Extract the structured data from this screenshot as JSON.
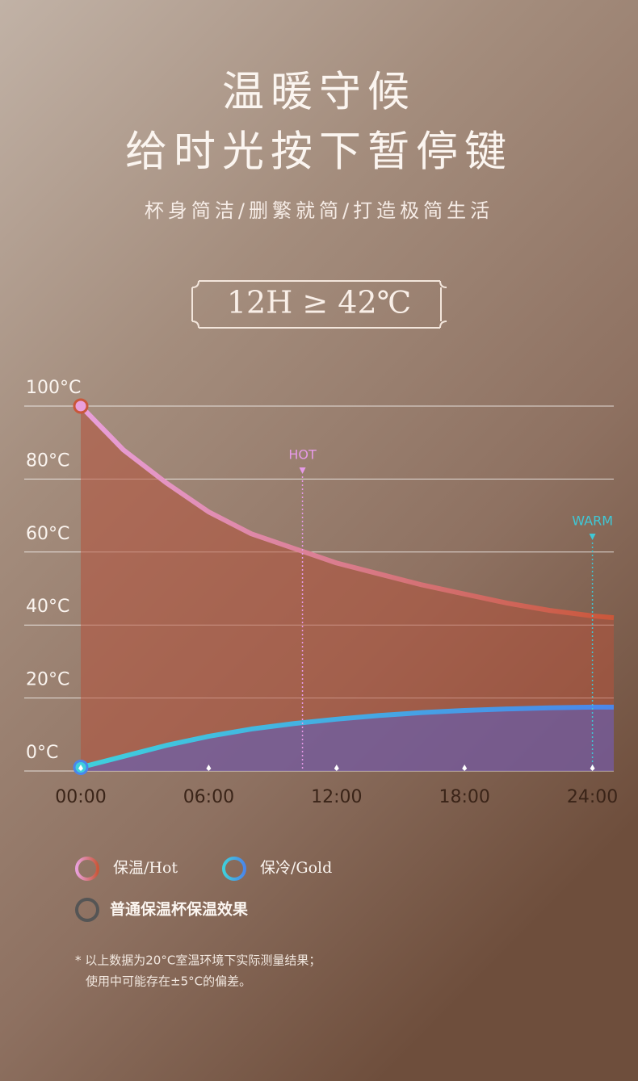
{
  "header": {
    "title_lines": [
      "温暖守候",
      "给时光按下暂停键"
    ],
    "subtitle": "杯身简洁/删繁就简/打造极简生活",
    "badge": "12H ≥ 42℃"
  },
  "chart_data": {
    "type": "line",
    "x": [
      0,
      2,
      4,
      6,
      8,
      10,
      12,
      14,
      16,
      18,
      20,
      22,
      24,
      25
    ],
    "series": [
      {
        "name": "保温/Hot",
        "color": "#e9a0dc",
        "color_end": "#c9573a",
        "fill": "#b4523c",
        "values": [
          100,
          88,
          79,
          71,
          65,
          61,
          57,
          54,
          51,
          48.5,
          46,
          44,
          42.5,
          42
        ]
      },
      {
        "name": "保冷/Gold",
        "color": "#3fd0dc",
        "color_end": "#4a86ea",
        "fill": "#5a5ec8",
        "values": [
          1,
          4,
          7,
          9.5,
          11.5,
          13,
          14.2,
          15.2,
          16,
          16.6,
          17,
          17.3,
          17.5,
          17.5
        ]
      }
    ],
    "legend_extra": {
      "name": "普通保温杯保温效果",
      "color": "#555555"
    },
    "xlim": [
      0,
      25
    ],
    "xticks": [
      {
        "value": 0,
        "label": "00:00"
      },
      {
        "value": 6,
        "label": "06:00"
      },
      {
        "value": 12,
        "label": "12:00"
      },
      {
        "value": 18,
        "label": "18:00"
      },
      {
        "value": 24,
        "label": "24:00"
      }
    ],
    "ylim": [
      0,
      100
    ],
    "yticks": [
      {
        "value": 0,
        "label": "0°C"
      },
      {
        "value": 20,
        "label": "20°C"
      },
      {
        "value": 40,
        "label": "40°C"
      },
      {
        "value": 60,
        "label": "60°C"
      },
      {
        "value": 80,
        "label": "80°C"
      },
      {
        "value": 100,
        "label": "100°C"
      }
    ],
    "grid": true,
    "annotations": [
      {
        "text": "HOT",
        "x": 10.4,
        "color": "#e79ae8"
      },
      {
        "text": "WARM",
        "x": 24,
        "color": "#3fc8d6"
      }
    ],
    "footnote": [
      "* 以上数据为20°C室温环境下实际测量结果；",
      "使用中可能存在±5°C的偏差。"
    ]
  }
}
